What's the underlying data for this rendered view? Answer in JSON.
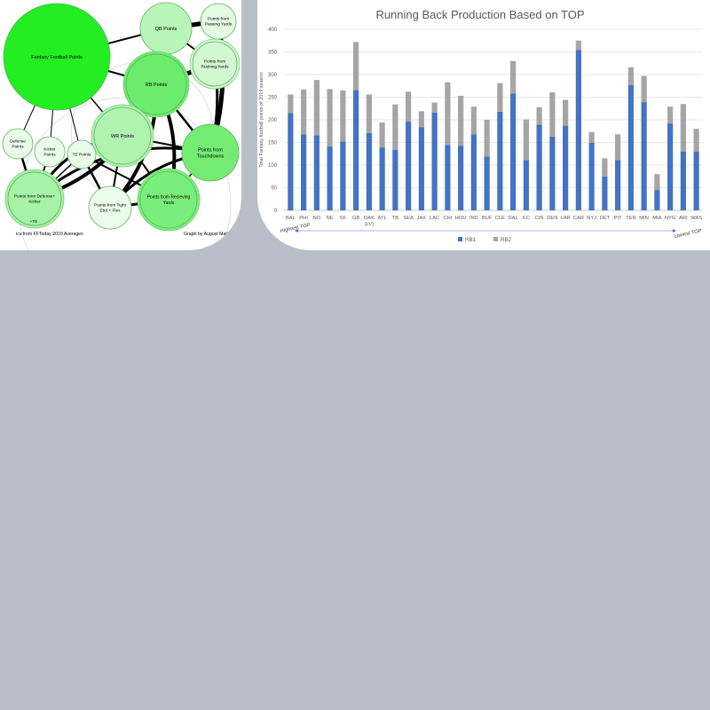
{
  "diagram": {
    "nodes": [
      {
        "id": "ffp",
        "label": "Fantasy Football Points",
        "color": "#22ee22"
      },
      {
        "id": "qb",
        "label": "QB Points",
        "color": "#b8f5b8"
      },
      {
        "id": "pass",
        "label": "Points from Passing Yards",
        "color": "#e4fbe4"
      },
      {
        "id": "rush",
        "label": "Points from Rushing Yards",
        "color": "#d2f8d2"
      },
      {
        "id": "rb",
        "label": "RB Points",
        "color": "#6cec6c"
      },
      {
        "id": "wr",
        "label": "WR Points",
        "color": "#b0f3b0"
      },
      {
        "id": "td",
        "label": "Points from Touchdowns",
        "color": "#74ec74"
      },
      {
        "id": "def",
        "label": "Defense Points",
        "color": "#eafdea"
      },
      {
        "id": "kick",
        "label": "Kicker Points",
        "color": "#eafdea"
      },
      {
        "id": "te",
        "label": "TE Points",
        "color": "#e8fce8"
      },
      {
        "id": "dk",
        "label": "Points from Defense+ Kicker",
        "color": "#a6f2a6"
      },
      {
        "id": "tef",
        "label": "Points from Tight End + Flex",
        "color": "#eafdea"
      },
      {
        "id": "rec",
        "label": "Points from Recieving Yards",
        "color": "#7aee7a"
      }
    ],
    "extra_label": "+TE",
    "footer_left": "ics from FFToday 2019 Averages",
    "footer_right": "Graph by August Majteryi"
  },
  "chart_data": {
    "type": "bar",
    "stacked": true,
    "title": "Running Back Production Based on TOP",
    "ylabel": "Total Fantasy football points of 2019 season",
    "xlabel": "",
    "ylim": [
      0,
      400
    ],
    "yticks": [
      0,
      50,
      100,
      150,
      200,
      250,
      300,
      350,
      400
    ],
    "grid": true,
    "legend_position": "bottom",
    "categories": [
      "BAL",
      "PHI",
      "NO",
      "NE",
      "SF",
      "GB",
      "OAK (LV)",
      "ATL",
      "TB",
      "SEA",
      "JAX",
      "LAC",
      "CHI",
      "HOU",
      "IND",
      "BUF",
      "CLE",
      "DAL",
      "KC",
      "CIN",
      "DEN",
      "LAR",
      "CAR",
      "NYJ",
      "DET",
      "PIT",
      "TEN",
      "MIN",
      "MIA",
      "NYG",
      "ARI",
      "WAS"
    ],
    "series": [
      {
        "name": "RB1",
        "color": "#4472c4",
        "values": [
          215,
          168,
          166,
          141,
          152,
          266,
          171,
          139,
          134,
          196,
          184,
          216,
          144,
          143,
          168,
          119,
          218,
          258,
          111,
          189,
          163,
          187,
          354,
          149,
          75,
          111,
          277,
          239,
          45,
          192,
          130,
          130
        ]
      },
      {
        "name": "RB2",
        "color": "#a5a5a5",
        "values": [
          41,
          99,
          122,
          127,
          113,
          106,
          85,
          55,
          100,
          66,
          35,
          22,
          139,
          110,
          61,
          81,
          63,
          72,
          90,
          39,
          98,
          57,
          21,
          24,
          40,
          57,
          39,
          58,
          35,
          37,
          105,
          50
        ]
      }
    ],
    "annotations": {
      "left": "Hightest TOP",
      "right": "Lowest TOP"
    }
  }
}
